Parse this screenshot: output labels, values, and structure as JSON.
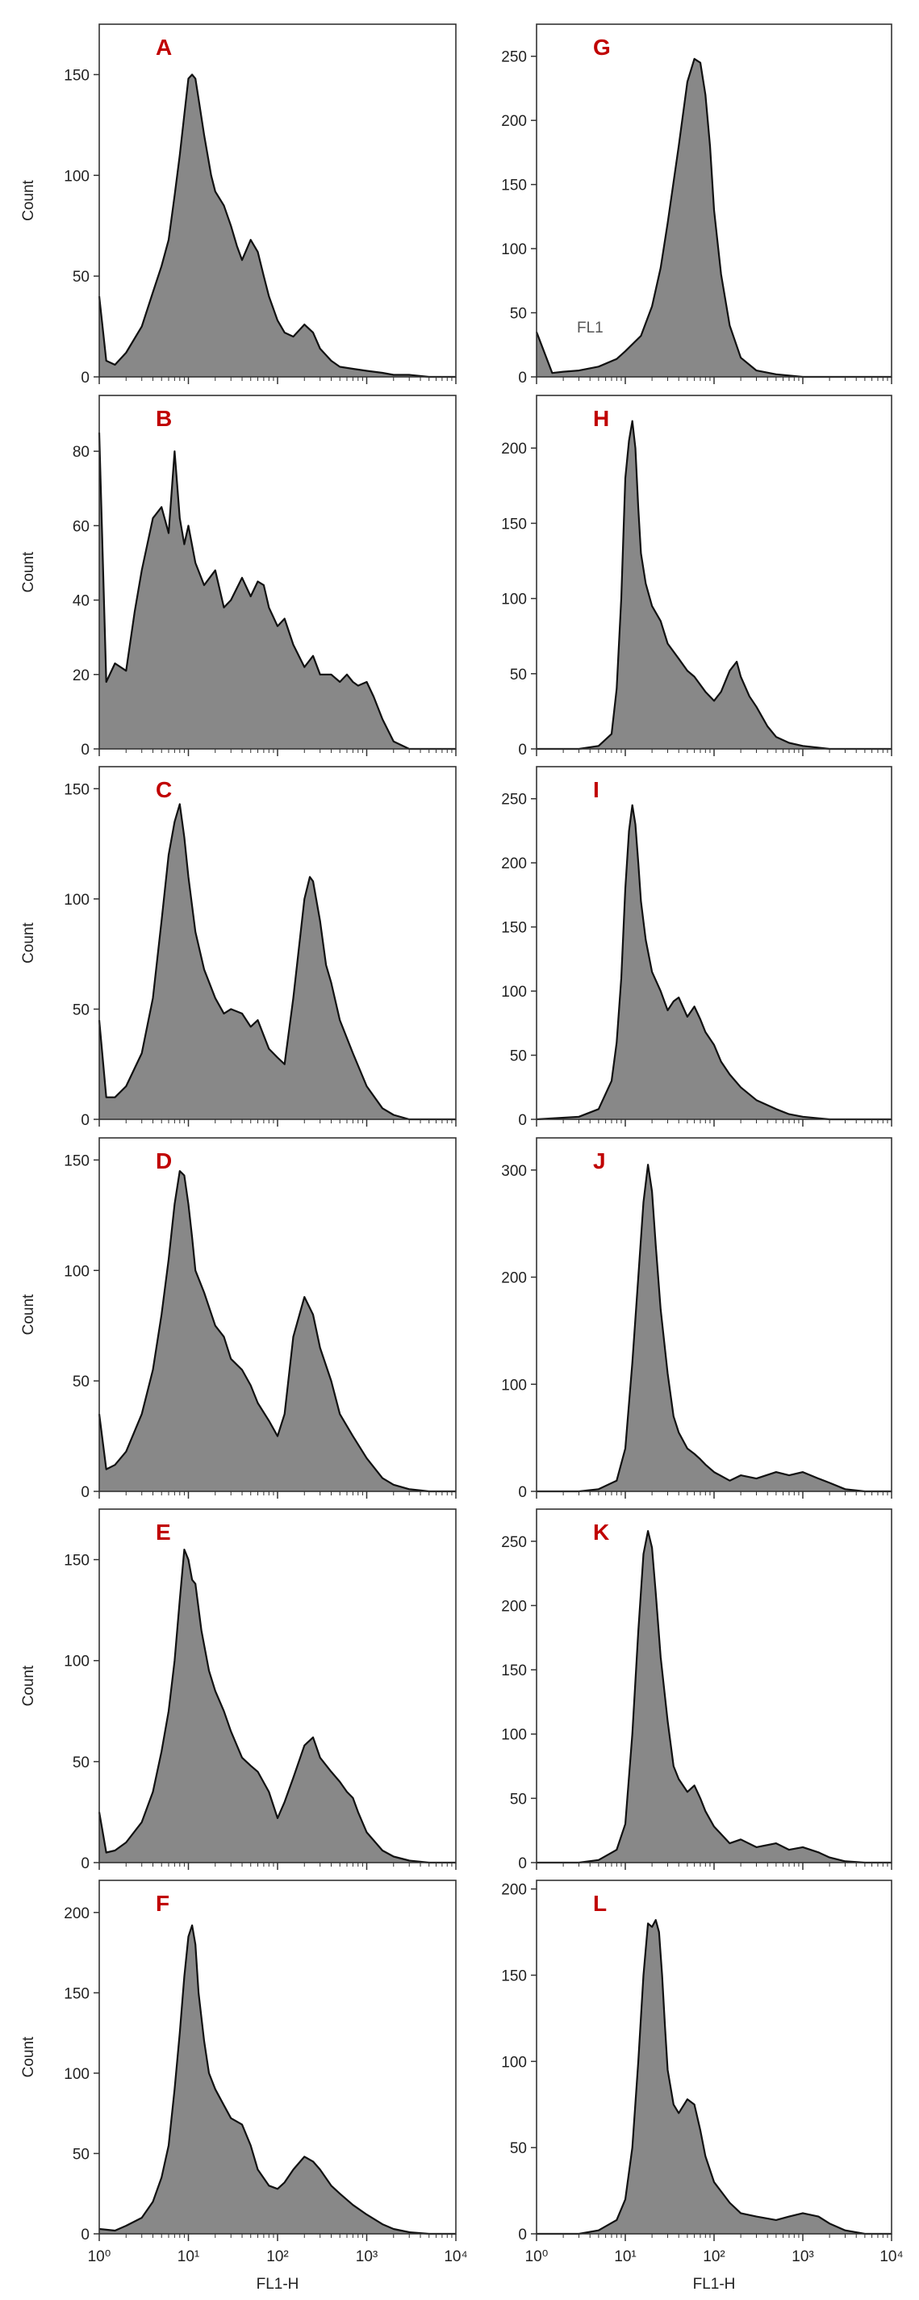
{
  "chart_data": [
    {
      "type": "area",
      "panel_label": "A",
      "xlabel": "",
      "ylabel": "Count",
      "x_scale": "log",
      "xlim": [
        1,
        10000
      ],
      "ylim": [
        0,
        175
      ],
      "yticks": [
        0,
        50,
        100,
        150
      ],
      "xtick_labels": [],
      "x": [
        1,
        1.2,
        1.5,
        2,
        3,
        4,
        5,
        6,
        7,
        8,
        9,
        10,
        11,
        12,
        13,
        15,
        18,
        20,
        25,
        30,
        35,
        40,
        50,
        60,
        70,
        80,
        100,
        120,
        150,
        200,
        250,
        300,
        400,
        500,
        700,
        1000,
        1500,
        2000,
        3000,
        5000,
        10000
      ],
      "values": [
        40,
        8,
        6,
        12,
        25,
        42,
        55,
        68,
        90,
        110,
        130,
        148,
        150,
        148,
        138,
        120,
        100,
        92,
        85,
        75,
        65,
        58,
        68,
        62,
        50,
        40,
        28,
        22,
        20,
        26,
        22,
        14,
        8,
        5,
        4,
        3,
        2,
        1,
        1,
        0,
        0
      ]
    },
    {
      "type": "area",
      "panel_label": "G",
      "xlabel": "",
      "ylabel": "",
      "x_scale": "log",
      "xlim": [
        1,
        10000
      ],
      "ylim": [
        0,
        275
      ],
      "yticks": [
        0,
        50,
        100,
        150,
        200,
        250
      ],
      "xtick_labels": [],
      "annotation": "FL1",
      "x": [
        1,
        1.5,
        2,
        3,
        5,
        8,
        10,
        15,
        20,
        25,
        30,
        40,
        50,
        60,
        70,
        80,
        90,
        100,
        120,
        150,
        200,
        300,
        500,
        1000,
        10000
      ],
      "values": [
        35,
        3,
        4,
        5,
        8,
        14,
        20,
        32,
        55,
        85,
        120,
        180,
        230,
        248,
        245,
        220,
        180,
        130,
        80,
        40,
        15,
        5,
        2,
        0,
        0
      ]
    },
    {
      "type": "area",
      "panel_label": "B",
      "xlabel": "",
      "ylabel": "Count",
      "x_scale": "log",
      "xlim": [
        1,
        10000
      ],
      "ylim": [
        0,
        95
      ],
      "yticks": [
        0,
        20,
        40,
        60,
        80
      ],
      "xtick_labels": [],
      "x": [
        1,
        1.2,
        1.5,
        2,
        2.5,
        3,
        4,
        5,
        6,
        7,
        8,
        9,
        10,
        12,
        15,
        20,
        25,
        30,
        40,
        50,
        60,
        70,
        80,
        100,
        120,
        150,
        200,
        250,
        300,
        400,
        500,
        600,
        700,
        800,
        1000,
        1200,
        1500,
        2000,
        3000,
        10000
      ],
      "values": [
        85,
        18,
        23,
        21,
        37,
        48,
        62,
        65,
        58,
        80,
        62,
        55,
        60,
        50,
        44,
        48,
        38,
        40,
        46,
        41,
        45,
        44,
        38,
        33,
        35,
        28,
        22,
        25,
        20,
        20,
        18,
        20,
        18,
        17,
        18,
        14,
        8,
        2,
        0,
        0
      ]
    },
    {
      "type": "area",
      "panel_label": "H",
      "xlabel": "",
      "ylabel": "",
      "x_scale": "log",
      "xlim": [
        1,
        10000
      ],
      "ylim": [
        0,
        235
      ],
      "yticks": [
        0,
        50,
        100,
        150,
        200
      ],
      "xtick_labels": [],
      "x": [
        1,
        3,
        5,
        7,
        8,
        9,
        10,
        11,
        12,
        13,
        14,
        15,
        17,
        20,
        25,
        30,
        40,
        50,
        60,
        80,
        100,
        120,
        150,
        180,
        200,
        250,
        300,
        400,
        500,
        700,
        1000,
        2000,
        5000,
        10000
      ],
      "values": [
        0,
        0,
        2,
        10,
        40,
        100,
        180,
        205,
        218,
        200,
        160,
        130,
        110,
        95,
        85,
        70,
        60,
        52,
        48,
        38,
        32,
        38,
        52,
        58,
        48,
        35,
        28,
        15,
        8,
        4,
        2,
        0,
        0,
        0
      ]
    },
    {
      "type": "area",
      "panel_label": "C",
      "xlabel": "",
      "ylabel": "Count",
      "x_scale": "log",
      "xlim": [
        1,
        10000
      ],
      "ylim": [
        0,
        160
      ],
      "yticks": [
        0,
        50,
        100,
        150
      ],
      "xtick_labels": [],
      "x": [
        1,
        1.2,
        1.5,
        2,
        3,
        4,
        5,
        6,
        7,
        8,
        9,
        10,
        12,
        15,
        20,
        25,
        30,
        40,
        50,
        60,
        70,
        80,
        100,
        120,
        150,
        200,
        230,
        250,
        300,
        350,
        400,
        500,
        700,
        1000,
        1500,
        2000,
        3000,
        10000
      ],
      "values": [
        45,
        10,
        10,
        15,
        30,
        55,
        90,
        120,
        135,
        143,
        128,
        110,
        85,
        68,
        55,
        48,
        50,
        48,
        42,
        45,
        38,
        32,
        28,
        25,
        55,
        100,
        110,
        108,
        90,
        70,
        62,
        45,
        30,
        15,
        5,
        2,
        0,
        0
      ]
    },
    {
      "type": "area",
      "panel_label": "I",
      "xlabel": "",
      "ylabel": "",
      "x_scale": "log",
      "xlim": [
        1,
        10000
      ],
      "ylim": [
        0,
        275
      ],
      "yticks": [
        0,
        50,
        100,
        150,
        200,
        250
      ],
      "xtick_labels": [],
      "x": [
        1,
        3,
        5,
        7,
        8,
        9,
        10,
        11,
        12,
        13,
        14,
        15,
        17,
        20,
        25,
        30,
        35,
        40,
        50,
        60,
        70,
        80,
        100,
        120,
        150,
        200,
        300,
        500,
        700,
        1000,
        2000,
        5000,
        10000
      ],
      "values": [
        0,
        2,
        8,
        30,
        60,
        110,
        180,
        225,
        245,
        230,
        200,
        170,
        140,
        115,
        100,
        85,
        92,
        95,
        80,
        88,
        78,
        68,
        58,
        45,
        35,
        25,
        15,
        8,
        4,
        2,
        0,
        0,
        0
      ]
    },
    {
      "type": "area",
      "panel_label": "D",
      "xlabel": "",
      "ylabel": "Count",
      "x_scale": "log",
      "xlim": [
        1,
        10000
      ],
      "ylim": [
        0,
        160
      ],
      "yticks": [
        0,
        50,
        100,
        150
      ],
      "xtick_labels": [],
      "x": [
        1,
        1.2,
        1.5,
        2,
        3,
        4,
        5,
        6,
        7,
        8,
        9,
        10,
        11,
        12,
        15,
        20,
        25,
        30,
        40,
        50,
        60,
        80,
        100,
        120,
        150,
        200,
        250,
        300,
        400,
        500,
        700,
        1000,
        1500,
        2000,
        3000,
        5000,
        10000
      ],
      "values": [
        35,
        10,
        12,
        18,
        35,
        55,
        80,
        105,
        130,
        145,
        143,
        130,
        115,
        100,
        90,
        75,
        70,
        60,
        55,
        48,
        40,
        32,
        25,
        35,
        70,
        88,
        80,
        65,
        50,
        35,
        25,
        15,
        6,
        3,
        1,
        0,
        0
      ]
    },
    {
      "type": "area",
      "panel_label": "J",
      "xlabel": "",
      "ylabel": "",
      "x_scale": "log",
      "xlim": [
        1,
        10000
      ],
      "ylim": [
        0,
        330
      ],
      "yticks": [
        0,
        100,
        200,
        300
      ],
      "xtick_labels": [],
      "x": [
        1,
        3,
        5,
        8,
        10,
        12,
        14,
        16,
        18,
        20,
        22,
        25,
        30,
        35,
        40,
        50,
        60,
        70,
        80,
        100,
        150,
        200,
        300,
        500,
        700,
        1000,
        1500,
        2000,
        3000,
        5000,
        10000
      ],
      "values": [
        0,
        0,
        2,
        10,
        40,
        120,
        200,
        270,
        305,
        280,
        230,
        170,
        110,
        70,
        55,
        40,
        35,
        30,
        25,
        18,
        10,
        15,
        12,
        18,
        15,
        18,
        12,
        8,
        2,
        0,
        0
      ]
    },
    {
      "type": "area",
      "panel_label": "E",
      "xlabel": "",
      "ylabel": "Count",
      "x_scale": "log",
      "xlim": [
        1,
        10000
      ],
      "ylim": [
        0,
        175
      ],
      "yticks": [
        0,
        50,
        100,
        150
      ],
      "xtick_labels": [],
      "x": [
        1,
        1.2,
        1.5,
        2,
        3,
        4,
        5,
        6,
        7,
        8,
        9,
        10,
        11,
        12,
        14,
        17,
        20,
        25,
        30,
        40,
        50,
        60,
        80,
        100,
        120,
        150,
        200,
        250,
        300,
        400,
        500,
        600,
        700,
        800,
        1000,
        1500,
        2000,
        3000,
        5000,
        10000
      ],
      "values": [
        25,
        5,
        6,
        10,
        20,
        35,
        55,
        75,
        100,
        130,
        155,
        150,
        140,
        138,
        115,
        95,
        85,
        75,
        65,
        52,
        48,
        45,
        35,
        22,
        30,
        42,
        58,
        62,
        52,
        45,
        40,
        35,
        32,
        25,
        15,
        6,
        3,
        1,
        0,
        0
      ]
    },
    {
      "type": "area",
      "panel_label": "K",
      "xlabel": "",
      "ylabel": "",
      "x_scale": "log",
      "xlim": [
        1,
        10000
      ],
      "ylim": [
        0,
        275
      ],
      "yticks": [
        0,
        50,
        100,
        150,
        200,
        250
      ],
      "xtick_labels": [],
      "x": [
        1,
        3,
        5,
        8,
        10,
        12,
        14,
        16,
        18,
        20,
        22,
        25,
        30,
        35,
        40,
        50,
        60,
        70,
        80,
        100,
        150,
        200,
        300,
        500,
        700,
        1000,
        1500,
        2000,
        3000,
        5000,
        10000
      ],
      "values": [
        0,
        0,
        2,
        10,
        30,
        100,
        180,
        240,
        258,
        245,
        210,
        160,
        110,
        75,
        65,
        55,
        60,
        50,
        40,
        28,
        15,
        18,
        12,
        15,
        10,
        12,
        8,
        4,
        1,
        0,
        0
      ]
    },
    {
      "type": "area",
      "panel_label": "F",
      "xlabel": "FL1-H",
      "ylabel": "Count",
      "x_scale": "log",
      "xlim": [
        1,
        10000
      ],
      "ylim": [
        0,
        220
      ],
      "yticks": [
        0,
        50,
        100,
        150,
        200
      ],
      "xtick_labels": [
        "10⁰",
        "10¹",
        "10²",
        "10³",
        "10⁴"
      ],
      "x": [
        1,
        1.5,
        2,
        3,
        4,
        5,
        6,
        7,
        8,
        9,
        10,
        11,
        12,
        13,
        15,
        17,
        20,
        25,
        30,
        40,
        50,
        60,
        80,
        100,
        120,
        150,
        200,
        250,
        300,
        400,
        500,
        700,
        1000,
        1500,
        2000,
        3000,
        5000,
        10000
      ],
      "values": [
        3,
        2,
        5,
        10,
        20,
        35,
        55,
        90,
        125,
        160,
        185,
        192,
        180,
        150,
        120,
        100,
        90,
        80,
        72,
        68,
        55,
        40,
        30,
        28,
        32,
        40,
        48,
        45,
        40,
        30,
        25,
        18,
        12,
        6,
        3,
        1,
        0,
        0
      ]
    },
    {
      "type": "area",
      "panel_label": "L",
      "xlabel": "FL1-H",
      "ylabel": "",
      "x_scale": "log",
      "xlim": [
        1,
        10000
      ],
      "ylim": [
        0,
        205
      ],
      "yticks": [
        0,
        50,
        100,
        150,
        200
      ],
      "xtick_labels": [
        "10⁰",
        "10¹",
        "10²",
        "10³",
        "10⁴"
      ],
      "x": [
        1,
        3,
        5,
        8,
        10,
        12,
        14,
        16,
        18,
        20,
        22,
        24,
        26,
        28,
        30,
        35,
        40,
        50,
        60,
        70,
        80,
        100,
        150,
        200,
        300,
        500,
        700,
        1000,
        1500,
        2000,
        3000,
        5000,
        10000
      ],
      "values": [
        0,
        0,
        2,
        8,
        20,
        50,
        100,
        150,
        180,
        178,
        182,
        175,
        150,
        120,
        95,
        75,
        70,
        78,
        75,
        60,
        45,
        30,
        18,
        12,
        10,
        8,
        10,
        12,
        10,
        6,
        2,
        0,
        0
      ]
    }
  ],
  "colors": {
    "fill": "#888888",
    "line": "#111111",
    "frame": "#333333",
    "panel_letter": "#c00000"
  }
}
